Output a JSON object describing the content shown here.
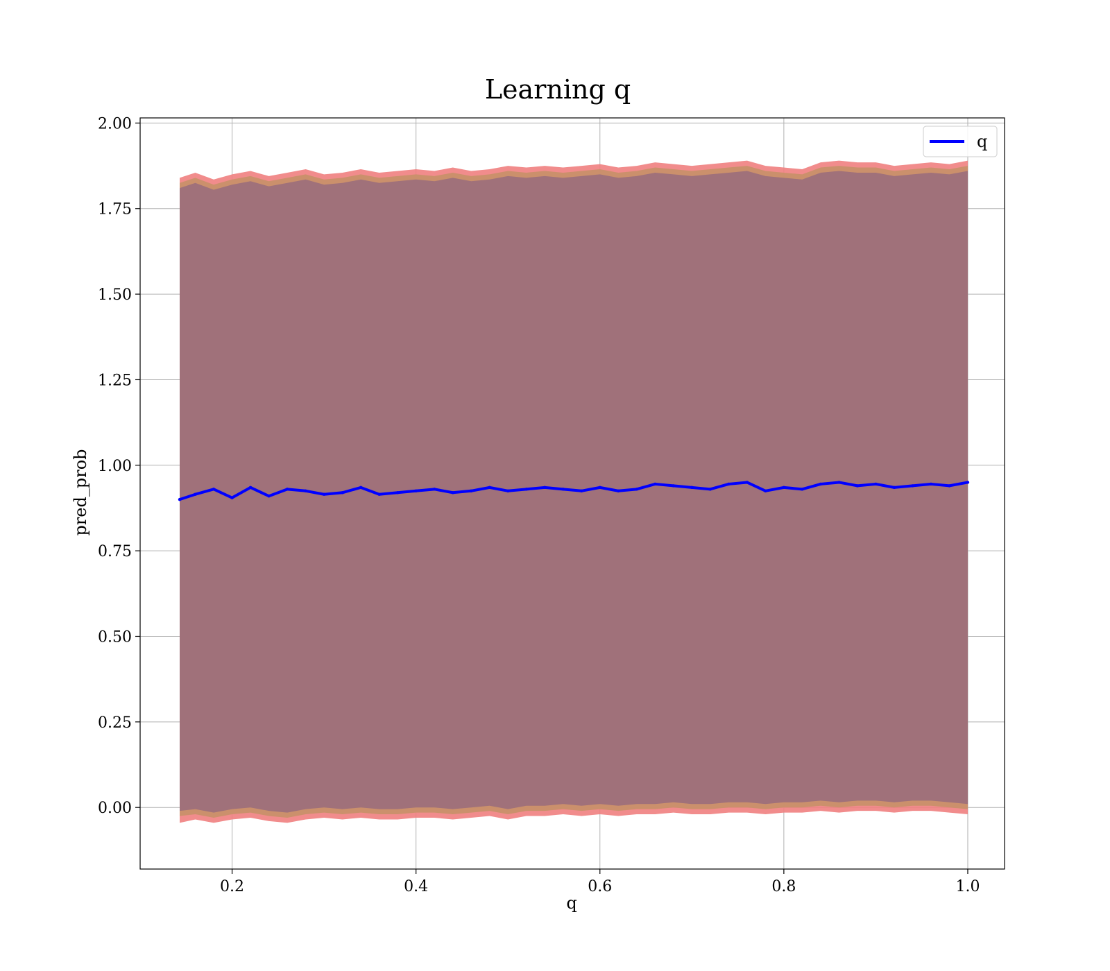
{
  "chart_data": {
    "type": "line",
    "title": "Learning q",
    "xlabel": "q",
    "ylabel": "pred_prob",
    "xlim": [
      0.1,
      1.04
    ],
    "ylim": [
      -0.18,
      2.015
    ],
    "xticks": [
      0.2,
      0.4,
      0.6,
      0.8,
      1.0
    ],
    "xtick_labels": [
      "0.2",
      "0.4",
      "0.6",
      "0.8",
      "1.0"
    ],
    "yticks": [
      0.0,
      0.25,
      0.5,
      0.75,
      1.0,
      1.25,
      1.5,
      1.75,
      2.0
    ],
    "ytick_labels": [
      "0.00",
      "0.25",
      "0.50",
      "0.75",
      "1.00",
      "1.25",
      "1.50",
      "1.75",
      "2.00"
    ],
    "grid": true,
    "legend": {
      "position": "top-right",
      "entries": [
        "q"
      ]
    },
    "colors": {
      "line": "#0000ff",
      "band_outer": "#f08080",
      "band_middle": "#c8906a",
      "band_inner": "#a0717a",
      "grid": "#b0b0b0"
    },
    "series": [
      {
        "name": "q",
        "x": [
          0.143,
          0.16,
          0.18,
          0.2,
          0.22,
          0.24,
          0.26,
          0.28,
          0.3,
          0.32,
          0.34,
          0.36,
          0.38,
          0.4,
          0.42,
          0.44,
          0.46,
          0.48,
          0.5,
          0.52,
          0.54,
          0.56,
          0.58,
          0.6,
          0.62,
          0.64,
          0.66,
          0.68,
          0.7,
          0.72,
          0.74,
          0.76,
          0.78,
          0.8,
          0.82,
          0.84,
          0.86,
          0.88,
          0.9,
          0.92,
          0.94,
          0.96,
          0.98,
          1.0
        ],
        "y": [
          0.9,
          0.915,
          0.93,
          0.905,
          0.935,
          0.91,
          0.93,
          0.925,
          0.915,
          0.92,
          0.935,
          0.915,
          0.92,
          0.925,
          0.93,
          0.92,
          0.925,
          0.935,
          0.925,
          0.93,
          0.935,
          0.93,
          0.925,
          0.935,
          0.925,
          0.93,
          0.945,
          0.94,
          0.935,
          0.93,
          0.945,
          0.95,
          0.925,
          0.935,
          0.93,
          0.945,
          0.95,
          0.94,
          0.945,
          0.935,
          0.94,
          0.945,
          0.94,
          0.95
        ]
      }
    ],
    "bands": [
      {
        "role": "outer",
        "upper": [
          1.84,
          1.855,
          1.835,
          1.85,
          1.86,
          1.845,
          1.855,
          1.865,
          1.85,
          1.855,
          1.865,
          1.855,
          1.86,
          1.865,
          1.86,
          1.87,
          1.86,
          1.865,
          1.875,
          1.87,
          1.875,
          1.87,
          1.875,
          1.88,
          1.87,
          1.875,
          1.885,
          1.88,
          1.875,
          1.88,
          1.885,
          1.89,
          1.875,
          1.87,
          1.865,
          1.885,
          1.89,
          1.885,
          1.885,
          1.875,
          1.88,
          1.885,
          1.88,
          1.89
        ],
        "lower": [
          -0.045,
          -0.035,
          -0.045,
          -0.035,
          -0.03,
          -0.04,
          -0.045,
          -0.035,
          -0.03,
          -0.035,
          -0.03,
          -0.035,
          -0.035,
          -0.03,
          -0.03,
          -0.035,
          -0.03,
          -0.025,
          -0.035,
          -0.025,
          -0.025,
          -0.02,
          -0.025,
          -0.02,
          -0.025,
          -0.02,
          -0.02,
          -0.015,
          -0.02,
          -0.02,
          -0.015,
          -0.015,
          -0.02,
          -0.015,
          -0.015,
          -0.01,
          -0.015,
          -0.01,
          -0.01,
          -0.015,
          -0.01,
          -0.01,
          -0.015,
          -0.02
        ]
      },
      {
        "role": "middle",
        "upper": [
          1.825,
          1.84,
          1.82,
          1.835,
          1.845,
          1.83,
          1.84,
          1.85,
          1.835,
          1.84,
          1.85,
          1.84,
          1.845,
          1.85,
          1.845,
          1.855,
          1.845,
          1.85,
          1.86,
          1.855,
          1.86,
          1.855,
          1.86,
          1.865,
          1.855,
          1.86,
          1.87,
          1.865,
          1.86,
          1.865,
          1.87,
          1.875,
          1.86,
          1.855,
          1.85,
          1.87,
          1.875,
          1.87,
          1.87,
          1.86,
          1.865,
          1.87,
          1.865,
          1.875
        ],
        "lower": [
          -0.025,
          -0.02,
          -0.03,
          -0.02,
          -0.015,
          -0.025,
          -0.03,
          -0.02,
          -0.015,
          -0.02,
          -0.015,
          -0.02,
          -0.02,
          -0.015,
          -0.015,
          -0.02,
          -0.015,
          -0.01,
          -0.02,
          -0.01,
          -0.01,
          -0.005,
          -0.01,
          -0.005,
          -0.01,
          -0.005,
          -0.005,
          0.0,
          -0.005,
          -0.005,
          0.0,
          0.0,
          -0.005,
          0.0,
          0.0,
          0.005,
          0.0,
          0.005,
          0.005,
          0.0,
          0.005,
          0.005,
          0.0,
          -0.005
        ]
      },
      {
        "role": "inner",
        "upper": [
          1.81,
          1.825,
          1.805,
          1.82,
          1.83,
          1.815,
          1.825,
          1.835,
          1.82,
          1.825,
          1.835,
          1.825,
          1.83,
          1.835,
          1.83,
          1.84,
          1.83,
          1.835,
          1.845,
          1.84,
          1.845,
          1.84,
          1.845,
          1.85,
          1.84,
          1.845,
          1.855,
          1.85,
          1.845,
          1.85,
          1.855,
          1.86,
          1.845,
          1.84,
          1.835,
          1.855,
          1.86,
          1.855,
          1.855,
          1.845,
          1.85,
          1.855,
          1.85,
          1.86
        ],
        "lower": [
          -0.01,
          -0.005,
          -0.015,
          -0.005,
          0.0,
          -0.01,
          -0.015,
          -0.005,
          0.0,
          -0.005,
          0.0,
          -0.005,
          -0.005,
          0.0,
          0.0,
          -0.005,
          0.0,
          0.005,
          -0.005,
          0.005,
          0.005,
          0.01,
          0.005,
          0.01,
          0.005,
          0.01,
          0.01,
          0.015,
          0.01,
          0.01,
          0.015,
          0.015,
          0.01,
          0.015,
          0.015,
          0.02,
          0.015,
          0.02,
          0.02,
          0.015,
          0.02,
          0.02,
          0.015,
          0.01
        ]
      }
    ]
  }
}
